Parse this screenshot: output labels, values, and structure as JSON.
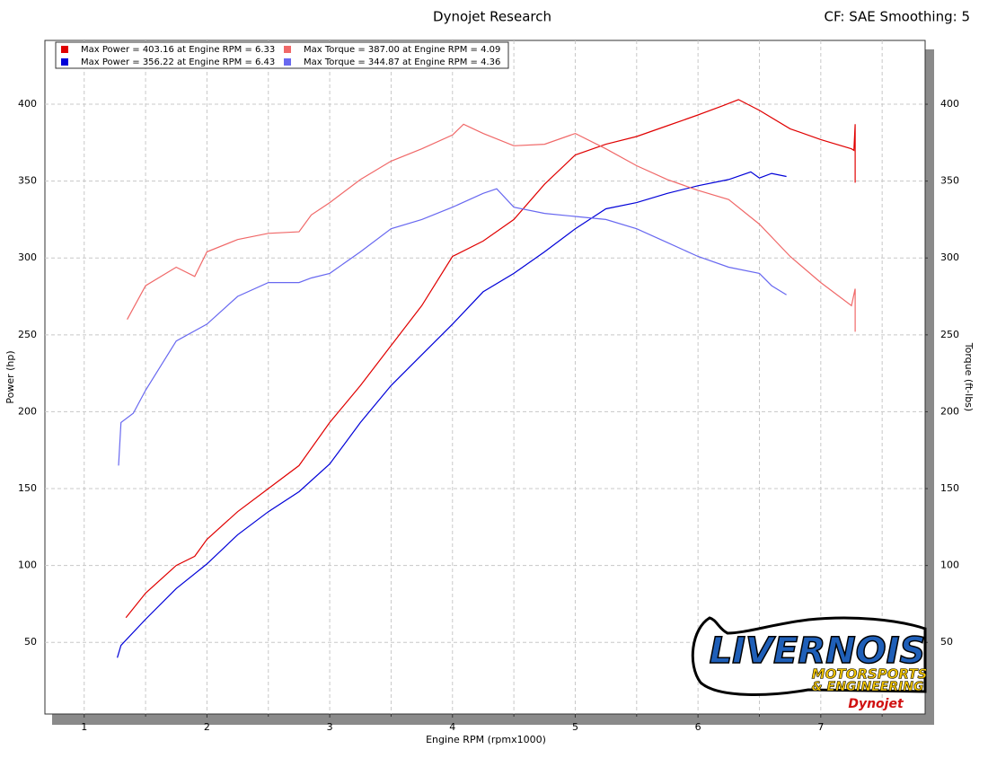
{
  "chart_data": {
    "type": "line",
    "title": "Dynojet Research",
    "subtitle": "CF: SAE Smoothing: 5",
    "x_label": "Engine RPM (rpmx1000)",
    "y_label": "Power (hp)",
    "y2_label": "Torque (ft-lbs)",
    "xlim": [
      0.68,
      7.85
    ],
    "ylim": [
      3.4,
      441.5
    ],
    "y2lim": [
      3.4,
      441.5
    ],
    "xticks": [
      1,
      2,
      3,
      4,
      5,
      6,
      7
    ],
    "x_minor_ticks": [
      1.5,
      2.5,
      3.5,
      4.5,
      5.5,
      6.5,
      7.5
    ],
    "yticks": [
      50,
      100,
      150,
      200,
      250,
      300,
      350,
      400
    ],
    "y2ticks": [
      50,
      100,
      150,
      200,
      250,
      300,
      350,
      400
    ],
    "grid": true,
    "legend_position": "top-left",
    "series": [
      {
        "name": "Max Power = 403.16 at Engine RPM = 6.33",
        "color": "#e00000",
        "axis": "y",
        "x": [
          1.34,
          1.5,
          1.75,
          1.9,
          2.0,
          2.25,
          2.5,
          2.75,
          3.0,
          3.25,
          3.5,
          3.75,
          4.0,
          4.25,
          4.5,
          4.75,
          5.0,
          5.25,
          5.5,
          5.75,
          6.0,
          6.2,
          6.33,
          6.5,
          6.75,
          7.0,
          7.25,
          7.27,
          7.28,
          7.28
        ],
        "values": [
          66,
          82,
          100,
          106,
          117,
          135,
          150,
          165,
          193,
          217,
          243,
          269,
          301,
          311,
          325,
          348,
          367,
          374,
          379,
          386,
          393,
          399,
          403,
          396,
          384,
          377,
          371,
          370,
          387,
          349
        ]
      },
      {
        "name": "Max Power = 356.22 at Engine RPM = 6.43",
        "color": "#0000d8",
        "axis": "y",
        "x": [
          1.27,
          1.3,
          1.5,
          1.75,
          2.0,
          2.25,
          2.5,
          2.75,
          3.0,
          3.25,
          3.5,
          3.75,
          4.0,
          4.25,
          4.5,
          4.75,
          5.0,
          5.25,
          5.5,
          5.75,
          6.0,
          6.25,
          6.43,
          6.5,
          6.6,
          6.72
        ],
        "values": [
          40,
          48,
          65,
          85,
          101,
          120,
          135,
          148,
          166,
          193,
          217,
          237,
          257,
          278,
          290,
          304,
          319,
          332,
          336,
          342,
          347,
          351,
          356,
          352,
          355,
          353
        ]
      },
      {
        "name": "Max Torque = 387.00 at Engine RPM = 4.09",
        "color": "#f06868",
        "axis": "y2",
        "x": [
          1.35,
          1.5,
          1.75,
          1.9,
          2.0,
          2.25,
          2.5,
          2.75,
          2.85,
          3.0,
          3.25,
          3.5,
          3.75,
          4.0,
          4.09,
          4.25,
          4.5,
          4.75,
          5.0,
          5.25,
          5.5,
          5.75,
          6.0,
          6.25,
          6.5,
          6.75,
          7.0,
          7.25,
          7.28,
          7.28
        ],
        "values": [
          260,
          282,
          294,
          288,
          304,
          312,
          316,
          317,
          328,
          336,
          351,
          363,
          371,
          380,
          387,
          381,
          373,
          374,
          381,
          371,
          360,
          351,
          344,
          338,
          322,
          301,
          284,
          269,
          280,
          252
        ]
      },
      {
        "name": "Max Torque = 344.87 at Engine RPM = 4.36",
        "color": "#6868f0",
        "axis": "y2",
        "x": [
          1.28,
          1.3,
          1.4,
          1.5,
          1.75,
          2.0,
          2.25,
          2.5,
          2.75,
          2.85,
          3.0,
          3.25,
          3.5,
          3.75,
          4.0,
          4.25,
          4.36,
          4.5,
          4.75,
          5.0,
          5.25,
          5.5,
          5.75,
          6.0,
          6.25,
          6.5,
          6.6,
          6.72
        ],
        "values": [
          165,
          193,
          199,
          214,
          246,
          257,
          275,
          284,
          284,
          287,
          290,
          304,
          319,
          325,
          333,
          342,
          345,
          333,
          329,
          327,
          325,
          319,
          310,
          301,
          294,
          290,
          282,
          276
        ]
      }
    ]
  },
  "logo": {
    "name": "LIVERNOIS",
    "line2": "MOTORSPORTS",
    "line3": "& ENGINEERING",
    "brand": "Dynojet"
  }
}
